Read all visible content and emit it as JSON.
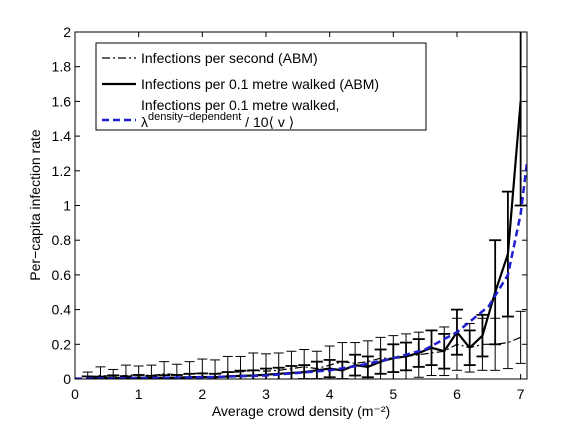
{
  "chart_data": {
    "type": "line",
    "xlabel": "Average crowd density (m⁻²)",
    "ylabel": "Per−capita infection rate",
    "xlim": [
      0,
      7.1
    ],
    "xticks": [
      0,
      1,
      2,
      3,
      4,
      5,
      6,
      7
    ],
    "ylim": [
      0,
      2
    ],
    "yticks": [
      0,
      0.2,
      0.4,
      0.6,
      0.8,
      1,
      1.2,
      1.4,
      1.6,
      1.8,
      2
    ],
    "legend": "upper left",
    "series": [
      {
        "name": "Infections per second (ABM)",
        "color": "#000000",
        "style": "dashdot",
        "x": [
          0.2,
          0.4,
          0.6,
          0.8,
          1.0,
          1.2,
          1.4,
          1.6,
          1.8,
          2.0,
          2.2,
          2.4,
          2.6,
          2.8,
          3.0,
          3.2,
          3.4,
          3.6,
          3.8,
          4.0,
          4.2,
          4.4,
          4.6,
          4.8,
          5.0,
          5.2,
          5.4,
          5.6,
          5.8,
          6.0,
          6.2,
          6.4,
          6.6,
          6.8,
          7.0
        ],
        "values": [
          0.01,
          0.02,
          0.015,
          0.02,
          0.025,
          0.02,
          0.03,
          0.025,
          0.03,
          0.035,
          0.03,
          0.04,
          0.04,
          0.05,
          0.045,
          0.05,
          0.06,
          0.07,
          0.06,
          0.08,
          0.1,
          0.09,
          0.1,
          0.12,
          0.12,
          0.13,
          0.14,
          0.15,
          0.16,
          0.2,
          0.18,
          0.2,
          0.2,
          0.21,
          0.24
        ],
        "errors": [
          0.03,
          0.05,
          0.04,
          0.06,
          0.05,
          0.06,
          0.07,
          0.06,
          0.07,
          0.08,
          0.08,
          0.09,
          0.09,
          0.1,
          0.1,
          0.1,
          0.1,
          0.1,
          0.1,
          0.11,
          0.11,
          0.12,
          0.12,
          0.12,
          0.13,
          0.13,
          0.13,
          0.13,
          0.14,
          0.15,
          0.14,
          0.15,
          0.15,
          0.15,
          0.15
        ]
      },
      {
        "name": "Infections per 0.1 metre walked (ABM)",
        "color": "#000000",
        "style": "solid",
        "x": [
          0.2,
          0.4,
          0.6,
          0.8,
          1.0,
          1.2,
          1.4,
          1.6,
          1.8,
          2.0,
          2.2,
          2.4,
          2.6,
          2.8,
          3.0,
          3.2,
          3.4,
          3.6,
          3.8,
          4.0,
          4.2,
          4.4,
          4.6,
          4.8,
          5.0,
          5.2,
          5.4,
          5.6,
          5.8,
          6.0,
          6.2,
          6.4,
          6.6,
          6.8,
          7.0
        ],
        "values": [
          0.005,
          0.004,
          0.006,
          0.005,
          0.008,
          0.006,
          0.007,
          0.008,
          0.01,
          0.012,
          0.01,
          0.015,
          0.018,
          0.02,
          0.025,
          0.03,
          0.035,
          0.04,
          0.05,
          0.06,
          0.05,
          0.08,
          0.07,
          0.1,
          0.12,
          0.13,
          0.15,
          0.18,
          0.16,
          0.27,
          0.18,
          0.25,
          0.5,
          0.72,
          1.6
        ],
        "errors": [
          0.01,
          0.01,
          0.015,
          0.01,
          0.015,
          0.012,
          0.015,
          0.015,
          0.02,
          0.02,
          0.02,
          0.025,
          0.03,
          0.03,
          0.035,
          0.035,
          0.04,
          0.04,
          0.05,
          0.05,
          0.05,
          0.06,
          0.06,
          0.07,
          0.08,
          0.08,
          0.08,
          0.1,
          0.1,
          0.13,
          0.1,
          0.12,
          0.3,
          0.36,
          0.6
        ]
      },
      {
        "name": "Infections per 0.1 metre walked,",
        "formula": {
          "base": "λ",
          "sup": "density−dependent",
          "rest": " / 10⟨ v ⟩"
        },
        "color": "#1f1fd0",
        "style": "dashed",
        "x": [
          0,
          1,
          2,
          3,
          4,
          4.5,
          5,
          5.5,
          6,
          6.5,
          6.8,
          7,
          7.1
        ],
        "values": [
          0.002,
          0.005,
          0.01,
          0.02,
          0.05,
          0.08,
          0.12,
          0.17,
          0.27,
          0.42,
          0.6,
          0.95,
          1.25
        ]
      }
    ]
  }
}
